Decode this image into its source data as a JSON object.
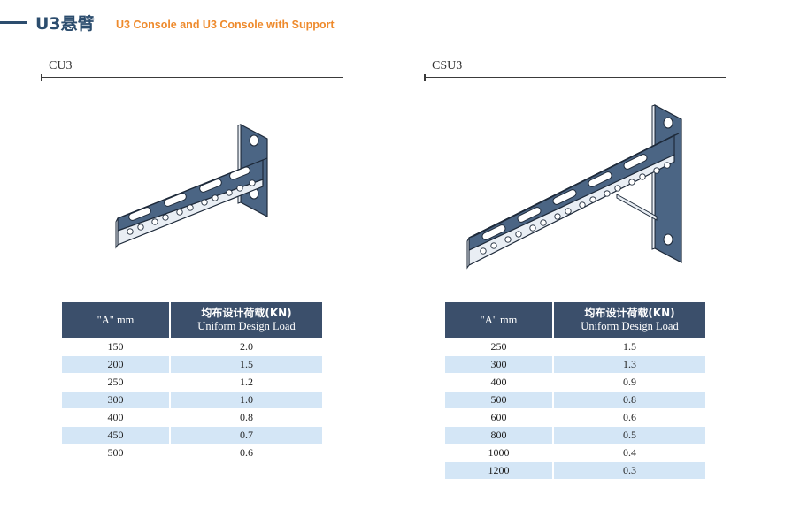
{
  "header": {
    "title": "U3悬臂",
    "subtitle": "U3 Console and U3 Console with Support"
  },
  "sections": [
    {
      "label": "CU3",
      "table": {
        "columns": [
          "\"A\" mm",
          "均布设计荷载(KN)",
          "Uniform Design Load"
        ],
        "rows": [
          [
            "150",
            "2.0"
          ],
          [
            "200",
            "1.5"
          ],
          [
            "250",
            "1.2"
          ],
          [
            "300",
            "1.0"
          ],
          [
            "400",
            "0.8"
          ],
          [
            "450",
            "0.7"
          ],
          [
            "500",
            "0.6"
          ]
        ]
      }
    },
    {
      "label": "CSU3",
      "table": {
        "columns": [
          "\"A\" mm",
          "均布设计荷载(KN)",
          "Uniform Design Load"
        ],
        "rows": [
          [
            "250",
            "1.5"
          ],
          [
            "300",
            "1.3"
          ],
          [
            "400",
            "0.9"
          ],
          [
            "500",
            "0.8"
          ],
          [
            "600",
            "0.6"
          ],
          [
            "800",
            "0.5"
          ],
          [
            "1000",
            "0.4"
          ],
          [
            "1200",
            "0.3"
          ]
        ]
      }
    }
  ],
  "colors": {
    "accent": "#ee8a2c",
    "primary": "#2c4d6e",
    "table_header": "#3b4f6b",
    "row_stripe": "#d4e6f6",
    "metal_face": "#4b6584"
  }
}
